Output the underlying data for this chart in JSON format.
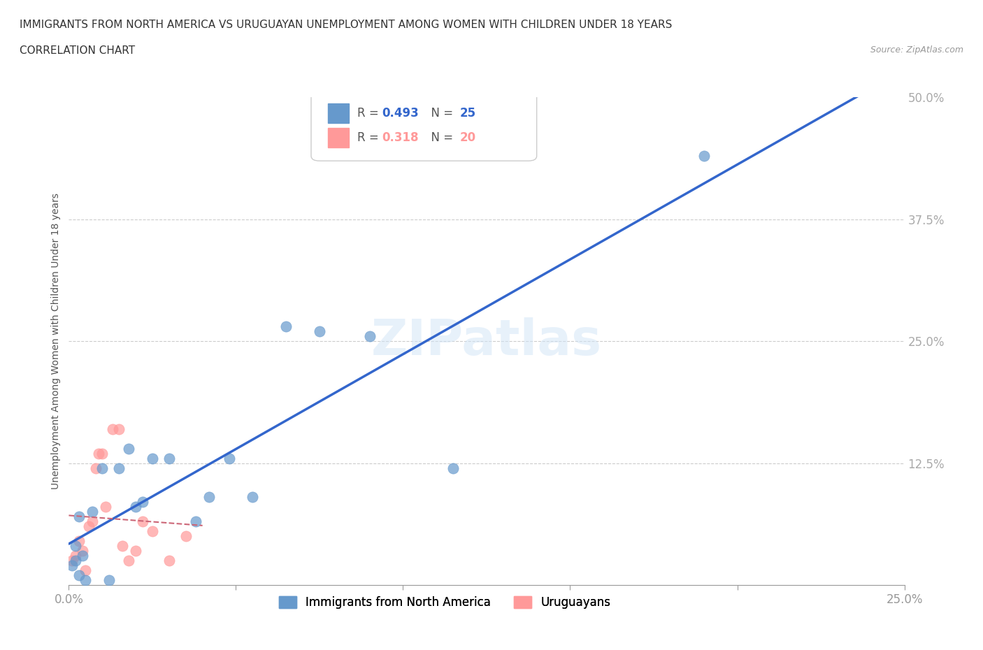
{
  "title_line1": "IMMIGRANTS FROM NORTH AMERICA VS URUGUAYAN UNEMPLOYMENT AMONG WOMEN WITH CHILDREN UNDER 18 YEARS",
  "title_line2": "CORRELATION CHART",
  "source_text": "Source: ZipAtlas.com",
  "xlabel": "",
  "ylabel": "Unemployment Among Women with Children Under 18 years",
  "xlim": [
    0,
    0.25
  ],
  "ylim": [
    0,
    0.5
  ],
  "xticks": [
    0.0,
    0.05,
    0.1,
    0.15,
    0.2,
    0.25
  ],
  "yticks": [
    0.0,
    0.125,
    0.25,
    0.375,
    0.5
  ],
  "xtick_labels": [
    "0.0%",
    "",
    "",
    "",
    "",
    "25.0%"
  ],
  "ytick_labels": [
    "",
    "12.5%",
    "25.0%",
    "37.5%",
    "50.0%"
  ],
  "r_blue": 0.493,
  "n_blue": 25,
  "r_pink": 0.318,
  "n_pink": 20,
  "blue_color": "#6699CC",
  "pink_color": "#FF9999",
  "blue_line_color": "#3366CC",
  "pink_line_color": "#CC6677",
  "legend_label_blue": "Immigrants from North America",
  "legend_label_pink": "Uruguayans",
  "watermark": "ZIPatlas",
  "blue_scatter_x": [
    0.001,
    0.002,
    0.003,
    0.003,
    0.004,
    0.005,
    0.007,
    0.008,
    0.01,
    0.012,
    0.015,
    0.018,
    0.02,
    0.022,
    0.025,
    0.03,
    0.035,
    0.04,
    0.045,
    0.055,
    0.065,
    0.075,
    0.09,
    0.115,
    0.19
  ],
  "blue_scatter_y": [
    0.02,
    0.025,
    0.01,
    0.04,
    0.03,
    0.005,
    0.07,
    0.12,
    0.075,
    0.005,
    0.12,
    0.14,
    0.08,
    0.085,
    0.13,
    0.13,
    0.065,
    0.09,
    0.13,
    0.09,
    0.265,
    0.26,
    0.255,
    0.12,
    0.44
  ],
  "pink_scatter_x": [
    0.001,
    0.002,
    0.003,
    0.004,
    0.005,
    0.006,
    0.007,
    0.008,
    0.009,
    0.01,
    0.011,
    0.013,
    0.015,
    0.016,
    0.018,
    0.02,
    0.022,
    0.025,
    0.03,
    0.035
  ],
  "pink_scatter_y": [
    0.025,
    0.03,
    0.045,
    0.035,
    0.015,
    0.06,
    0.065,
    0.12,
    0.135,
    0.135,
    0.08,
    0.16,
    0.16,
    0.04,
    0.025,
    0.035,
    0.065,
    0.055,
    0.025,
    0.05
  ]
}
